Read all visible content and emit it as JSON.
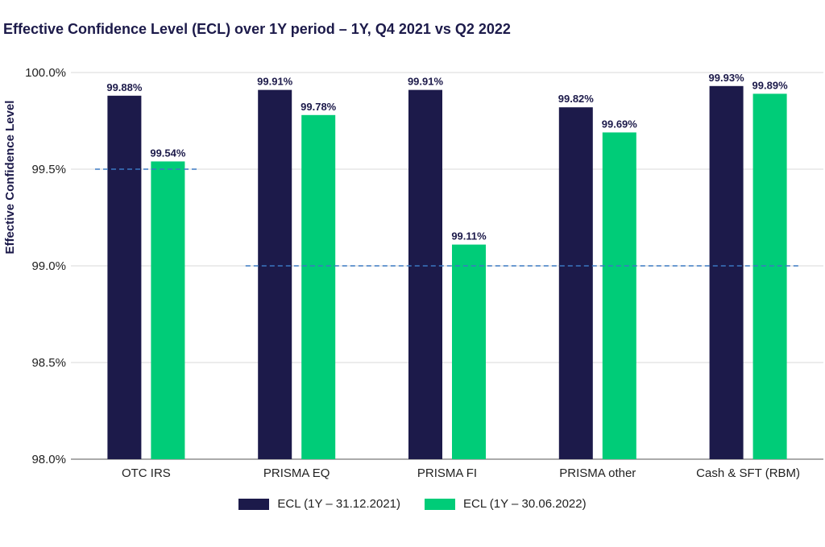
{
  "chart_data": {
    "type": "bar",
    "title": "Effective Confidence Level (ECL) over 1Y period – 1Y, Q4 2021 vs Q2 2022",
    "ylabel": "Effective Confidence Level",
    "ylim": [
      98.0,
      100.0
    ],
    "yticks": [
      {
        "value": 98.0,
        "label": "98.0%"
      },
      {
        "value": 98.5,
        "label": "98.5%"
      },
      {
        "value": 99.0,
        "label": "99.0%"
      },
      {
        "value": 99.5,
        "label": "99.5%"
      },
      {
        "value": 100.0,
        "label": "100.0%"
      }
    ],
    "grid": "horizontal",
    "legend_position": "bottom",
    "categories": [
      "OTC IRS",
      "PRISMA EQ",
      "PRISMA FI",
      "PRISMA other",
      "Cash & SFT (RBM)"
    ],
    "series": [
      {
        "name": "ECL (1Y – 31.12.2021)",
        "color": "#1c1a4a",
        "values": [
          99.88,
          99.91,
          99.91,
          99.82,
          99.93
        ],
        "labels": [
          "99.88%",
          "99.91%",
          "99.91%",
          "99.82%",
          "99.93%"
        ]
      },
      {
        "name": "ECL (1Y – 30.06.2022)",
        "color": "#00cc78",
        "values": [
          99.54,
          99.78,
          99.11,
          99.69,
          99.89
        ],
        "labels": [
          "99.54%",
          "99.78%",
          "99.11%",
          "99.69%",
          "99.89%"
        ]
      }
    ],
    "reference_lines": [
      {
        "value": 99.5,
        "from_category": 0,
        "to_category": 0,
        "color": "#3a78c2",
        "style": "dashed"
      },
      {
        "value": 99.0,
        "from_category": 1,
        "to_category": 4,
        "color": "#3a78c2",
        "style": "dashed"
      }
    ]
  }
}
